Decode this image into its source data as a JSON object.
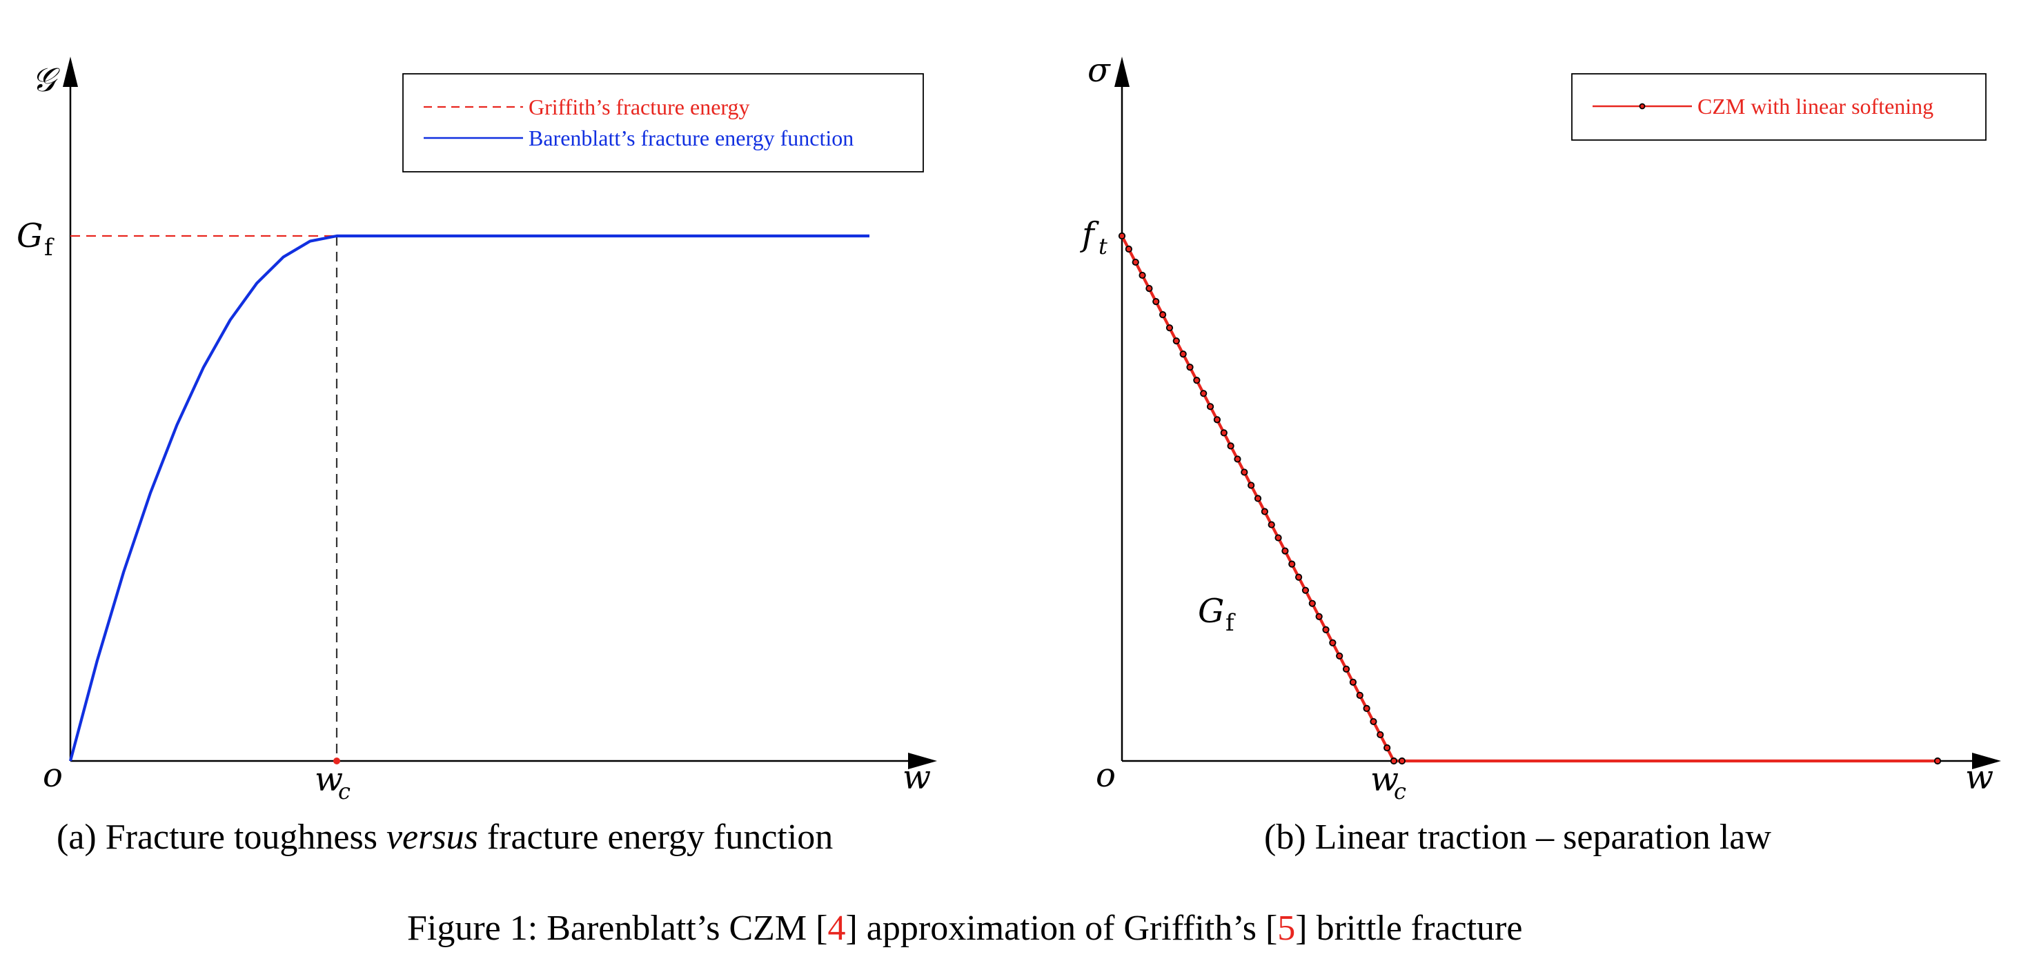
{
  "colors": {
    "red": "#e8261f",
    "blue": "#1130e0",
    "black": "#000000",
    "dash_black": "#333333"
  },
  "chart_data": [
    {
      "type": "line",
      "panel": "a",
      "caption_before": "(a) Fracture toughness ",
      "caption_italic": "versus",
      "caption_after": " fracture energy function",
      "ylabel": "𝒢",
      "xlabel": "w",
      "origin_label": "o",
      "xtick_label": "w",
      "xtick_sub": "c",
      "ytick_label": "G",
      "ytick_sub": "f",
      "xlim": [
        0,
        3.25
      ],
      "ylim": [
        0,
        1.3
      ],
      "wc": 1.0,
      "gf": 1.0,
      "legend": {
        "position": "top-right",
        "entries": [
          {
            "label": "Griffith’s fracture energy",
            "color": "#e8261f",
            "style": "dashed"
          },
          {
            "label": "Barenblatt’s fracture energy function",
            "color": "#1130e0",
            "style": "solid"
          }
        ]
      },
      "series": [
        {
          "name": "Griffith’s fracture energy",
          "color": "#e8261f",
          "style": "dashed",
          "x": [
            0,
            1.0
          ],
          "y": [
            1.0,
            1.0
          ]
        },
        {
          "name": "Barenblatt’s fracture energy function",
          "color": "#1130e0",
          "style": "solid",
          "x": [
            0,
            0.1,
            0.2,
            0.3,
            0.4,
            0.5,
            0.6,
            0.7,
            0.8,
            0.9,
            1.0,
            1.5,
            2.0,
            2.5,
            3.0
          ],
          "y": [
            0,
            0.19,
            0.36,
            0.51,
            0.64,
            0.75,
            0.84,
            0.91,
            0.96,
            0.99,
            1.0,
            1.0,
            1.0,
            1.0,
            1.0
          ]
        }
      ]
    },
    {
      "type": "line",
      "panel": "b",
      "caption": "(b) Linear traction – separation law",
      "ylabel": "σ",
      "xlabel": "w",
      "origin_label": "o",
      "xtick_label": "w",
      "xtick_sub": "c",
      "ytick_label": "f",
      "ytick_sub": "t",
      "area_label": "G",
      "area_sub": "f",
      "xlim": [
        0,
        3.25
      ],
      "ylim": [
        0,
        1.3
      ],
      "wc": 1.0,
      "ft": 1.0,
      "legend": {
        "position": "top-right",
        "entries": [
          {
            "label": "CZM with linear softening",
            "color": "#e8261f",
            "style": "solid-marker"
          }
        ]
      },
      "series": [
        {
          "name": "CZM with linear softening",
          "color": "#e8261f",
          "x": [
            0,
            1.0,
            3.0
          ],
          "y": [
            1.0,
            0,
            0
          ],
          "marker_count_softening": 41,
          "marker_tail_x": [
            1.03,
            3.0
          ]
        }
      ]
    }
  ],
  "figure_caption": {
    "prefix": "Figure 1: Barenblatt’s CZM [",
    "ref1": "4",
    "middle": "] approximation of Griffith’s [",
    "ref2": "5",
    "suffix": "] brittle fracture"
  }
}
